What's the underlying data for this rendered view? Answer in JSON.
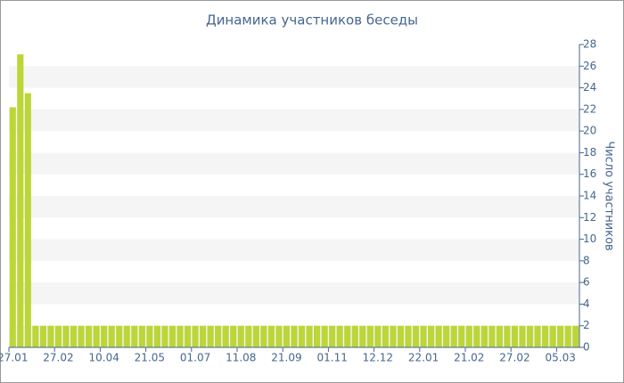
{
  "chart_data": {
    "type": "bar",
    "title": "Динамика участников беседы",
    "y_axis_label": "Число участников",
    "categories": [
      "27.01",
      null,
      null,
      null,
      null,
      null,
      "27.02",
      null,
      null,
      null,
      null,
      null,
      "10.04",
      null,
      null,
      null,
      null,
      null,
      "21.05",
      null,
      null,
      null,
      null,
      null,
      "01.07",
      null,
      null,
      null,
      null,
      null,
      "11.08",
      null,
      null,
      null,
      null,
      null,
      "21.09",
      null,
      null,
      null,
      null,
      null,
      "01.11",
      null,
      null,
      null,
      null,
      null,
      "12.12",
      null,
      null,
      null,
      null,
      null,
      "22.01",
      null,
      null,
      null,
      null,
      null,
      "21.02",
      null,
      null,
      null,
      null,
      null,
      "27.02",
      null,
      null,
      null,
      null,
      null,
      "05.03",
      null,
      null
    ],
    "values": [
      22.2,
      27.1,
      23.5,
      2,
      2,
      2,
      2,
      2,
      2,
      2,
      2,
      2,
      2,
      2,
      2,
      2,
      2,
      2,
      2,
      2,
      2,
      2,
      2,
      2,
      2,
      2,
      2,
      2,
      2,
      2,
      2,
      2,
      2,
      2,
      2,
      2,
      2,
      2,
      2,
      2,
      2,
      2,
      2,
      2,
      2,
      2,
      2,
      2,
      2,
      2,
      2,
      2,
      2,
      2,
      2,
      2,
      2,
      2,
      2,
      2,
      2,
      2,
      2,
      2,
      2,
      2,
      2,
      2,
      2,
      2,
      2,
      2,
      2,
      2,
      2
    ],
    "color": "#bcd63a",
    "ylim": [
      0,
      28
    ],
    "yticks": [
      0,
      2,
      4,
      6,
      8,
      10,
      12,
      14,
      16,
      18,
      20,
      22,
      24,
      26,
      28
    ],
    "grid_bands": true
  }
}
